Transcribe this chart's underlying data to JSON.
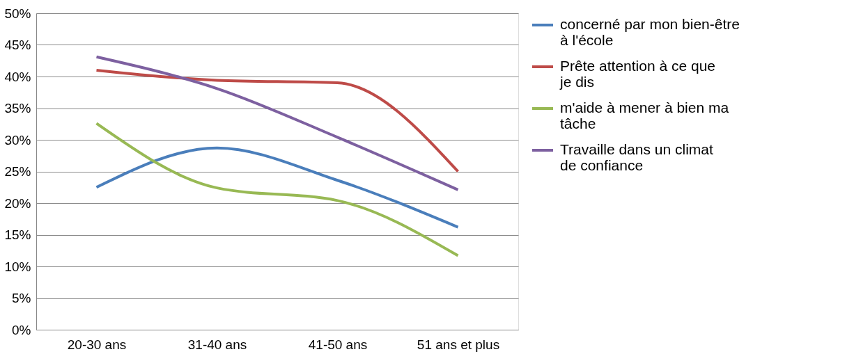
{
  "chart_data": {
    "type": "line",
    "categories": [
      "20-30 ans",
      "31-40 ans",
      "41-50 ans",
      "51 ans et plus"
    ],
    "series": [
      {
        "name": "concerné par mon bien-être à l'école",
        "color": "#4a7ebb",
        "values": [
          22.5,
          28.7,
          23.6,
          16.2
        ]
      },
      {
        "name": "Prête attention à ce que je dis",
        "color": "#be4b48",
        "values": [
          41.0,
          39.4,
          39.0,
          25.0
        ]
      },
      {
        "name": "m'aide à mener à bien ma tâche",
        "color": "#98b954",
        "values": [
          32.6,
          22.4,
          20.4,
          11.7
        ]
      },
      {
        "name": "Travaille dans un climat de confiance",
        "color": "#7d60a0",
        "values": [
          43.1,
          38.1,
          30.4,
          22.1
        ]
      }
    ],
    "ylim": [
      0,
      50
    ],
    "yticks": [
      {
        "value": 0,
        "label": "0%"
      },
      {
        "value": 5,
        "label": "5%"
      },
      {
        "value": 10,
        "label": "10%"
      },
      {
        "value": 15,
        "label": "15%"
      },
      {
        "value": 20,
        "label": "20%"
      },
      {
        "value": 25,
        "label": "25%"
      },
      {
        "value": 30,
        "label": "30%"
      },
      {
        "value": 35,
        "label": "35%"
      },
      {
        "value": 40,
        "label": "40%"
      },
      {
        "value": 45,
        "label": "45%"
      },
      {
        "value": 50,
        "label": "50%"
      }
    ],
    "grid": "y",
    "legend": "right",
    "marker": "none",
    "line_style": "solid"
  }
}
